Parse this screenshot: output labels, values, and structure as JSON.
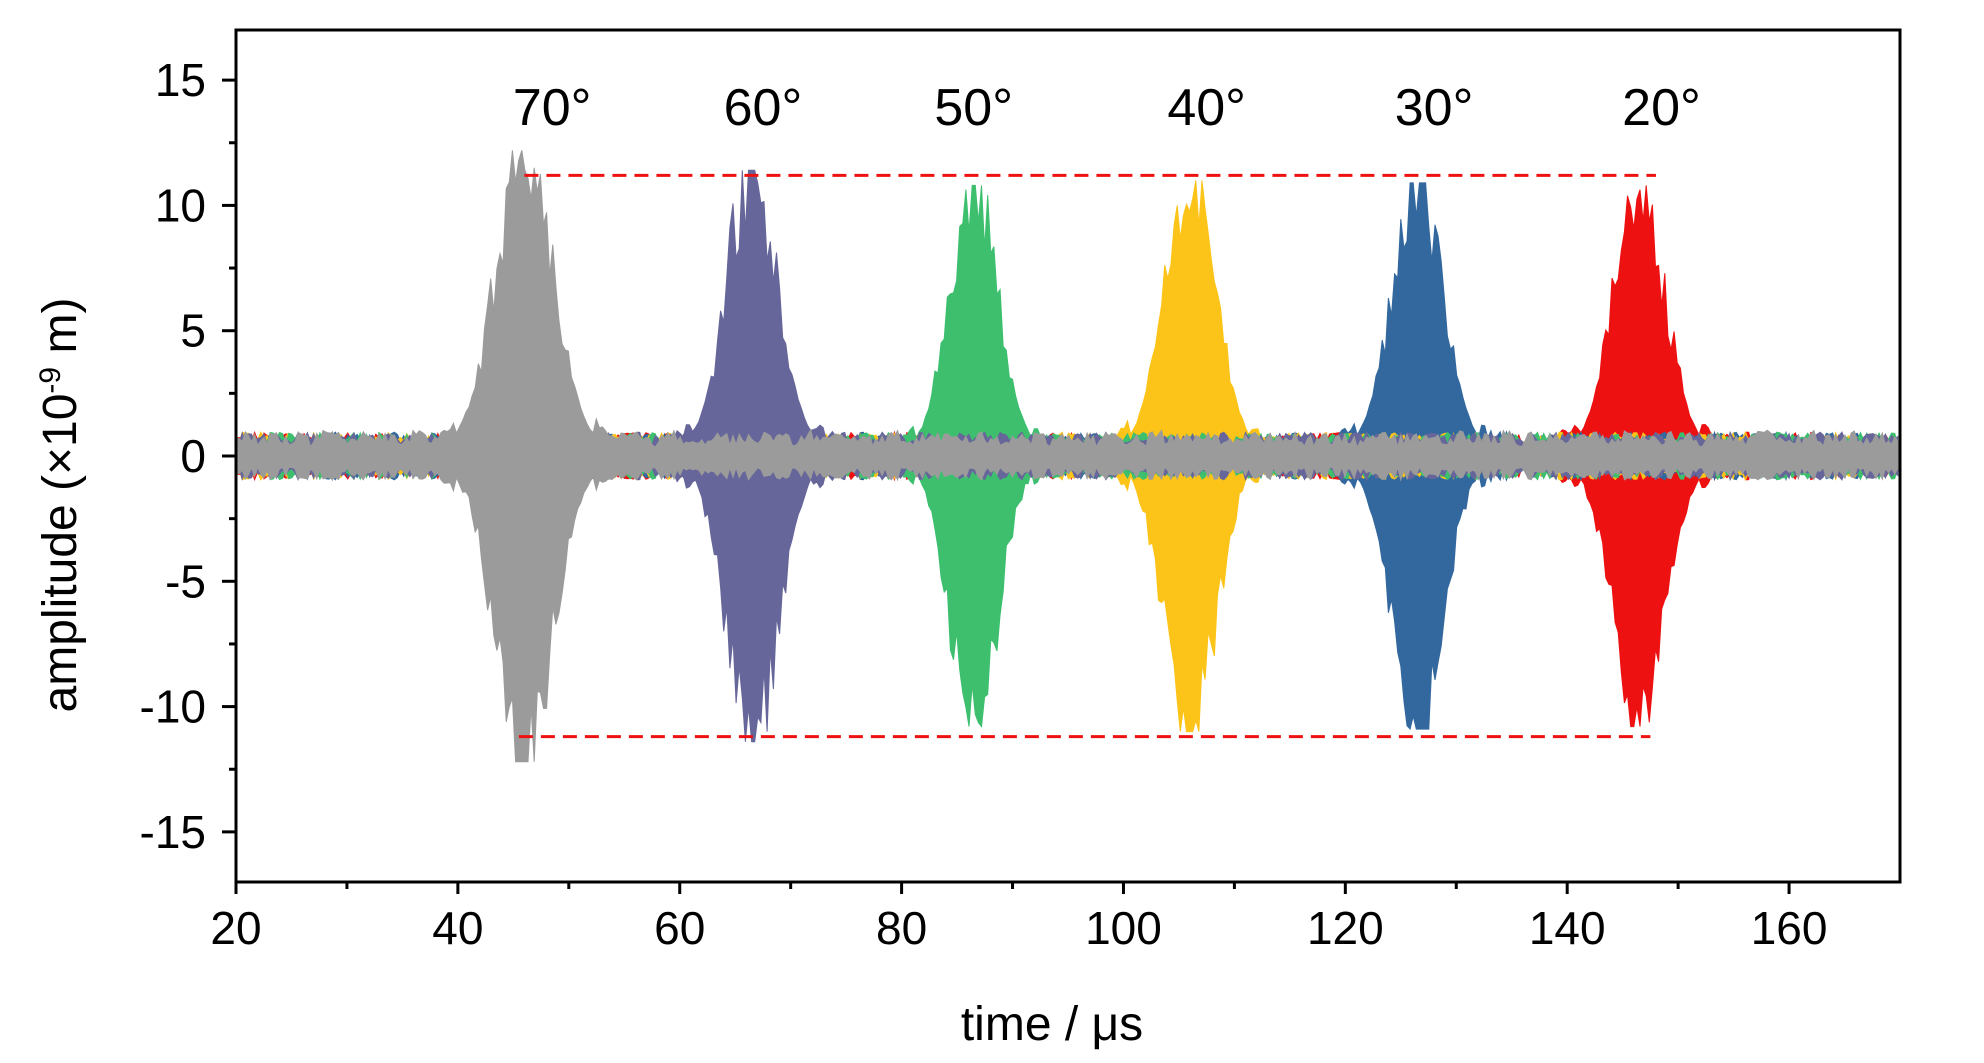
{
  "chart_data": {
    "type": "line",
    "xlabel": "time / μs",
    "ylabel": {
      "prefix": "amplitude (×10",
      "exponent": "-9",
      "suffix": " m)"
    },
    "xlim": [
      20,
      170
    ],
    "ylim": [
      -17,
      17
    ],
    "x_ticks": [
      20,
      40,
      60,
      80,
      100,
      120,
      140,
      160
    ],
    "y_ticks": [
      15,
      10,
      5,
      0,
      -5,
      -10,
      -15
    ],
    "grid": false,
    "series": [
      {
        "name": "20°",
        "color": "#ee1111",
        "center": 146.5,
        "peak": 10.8,
        "width": 3.2
      },
      {
        "name": "30°",
        "color": "#33689e",
        "center": 126.5,
        "peak": 10.9,
        "width": 3.2
      },
      {
        "name": "40°",
        "color": "#fcc419",
        "center": 106.0,
        "peak": 11.0,
        "width": 3.2
      },
      {
        "name": "50°",
        "color": "#3dbf6e",
        "center": 86.5,
        "peak": 10.8,
        "width": 3.0
      },
      {
        "name": "60°",
        "color": "#66669a",
        "center": 66.5,
        "peak": 11.4,
        "width": 3.2
      },
      {
        "name": "70°",
        "color": "#9b9b9b",
        "center": 46.0,
        "peak": 12.2,
        "width": 3.6
      }
    ],
    "annotations": {
      "reference_lines": [
        {
          "label": "upper",
          "y": 11.2,
          "x_start": 46,
          "x_end": 148,
          "color": "#ee1111",
          "style": "dashed"
        },
        {
          "label": "lower",
          "y": -11.2,
          "x_start": 45.5,
          "x_end": 147.5,
          "color": "#ee1111",
          "style": "dashed"
        }
      ],
      "angle_labels": [
        {
          "text": "70°",
          "x": 48.5,
          "y": 13.2
        },
        {
          "text": "60°",
          "x": 67.5,
          "y": 13.2
        },
        {
          "text": "50°",
          "x": 86.5,
          "y": 13.2
        },
        {
          "text": "40°",
          "x": 107.5,
          "y": 13.2
        },
        {
          "text": "30°",
          "x": 128.0,
          "y": 13.2
        },
        {
          "text": "20°",
          "x": 148.5,
          "y": 13.2
        }
      ]
    }
  }
}
